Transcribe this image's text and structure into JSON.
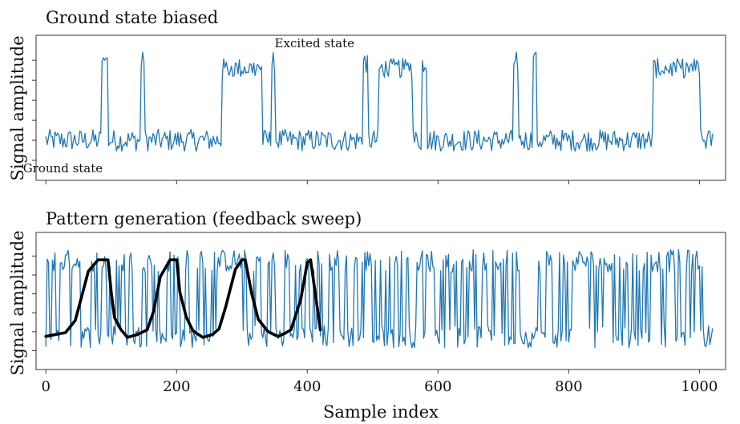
{
  "chart_data": [
    {
      "type": "line",
      "title": "Ground state biased",
      "ylabel": "Signal amplitude",
      "xlabel": "",
      "xlim": [
        -15,
        1040
      ],
      "ylim": [
        -0.2,
        1.25
      ],
      "x_ticks": [
        0,
        200,
        400,
        600,
        800,
        1000
      ],
      "show_x_tick_labels": false,
      "y_tick_count": 6,
      "grid": false,
      "annotations": [
        {
          "text": "Excited state",
          "x": 350,
          "y": 1.13
        },
        {
          "text": "Ground state",
          "x": -35,
          "y": -0.12
        }
      ],
      "series": [
        {
          "color": "#1f77b4",
          "x_start": 0,
          "x_end": 1020,
          "noise": 0.11,
          "baseline": 0.2,
          "excited_level": 0.92,
          "spike_level": 0.98,
          "high_intervals": [
            [
              270,
              330
            ],
            [
              510,
              560
            ],
            [
              930,
              1000
            ]
          ],
          "spikes": [
            [
              85,
              95
            ],
            [
              145,
              150
            ],
            [
              345,
              350
            ],
            [
              485,
              492
            ],
            [
              575,
              582
            ],
            [
              715,
              722
            ],
            [
              745,
              750
            ]
          ]
        }
      ]
    },
    {
      "type": "line",
      "title": "Pattern generation (feedback sweep)",
      "ylabel": "Signal amplitude",
      "xlabel": "Sample index",
      "xlim": [
        -15,
        1040
      ],
      "ylim": [
        -0.2,
        1.25
      ],
      "x_ticks": [
        0,
        200,
        400,
        600,
        800,
        1000
      ],
      "x_tick_labels": [
        "0",
        "200",
        "400",
        "600",
        "800",
        "1000"
      ],
      "show_x_tick_labels": true,
      "y_tick_count": 6,
      "grid": false,
      "series": [
        {
          "color": "#1f77b4",
          "x_start": 0,
          "x_end": 1020,
          "low": 0.15,
          "high": 0.95,
          "noise": 0.12
        },
        {
          "color": "#000000",
          "x": [
            0,
            30,
            45,
            55,
            65,
            80,
            95,
            100,
            105,
            115,
            125,
            140,
            155,
            165,
            175,
            190,
            200,
            205,
            215,
            225,
            240,
            255,
            265,
            275,
            290,
            300,
            305,
            315,
            325,
            340,
            355,
            365,
            375,
            390,
            400,
            405,
            420
          ],
          "y": [
            0.15,
            0.19,
            0.32,
            0.58,
            0.84,
            0.96,
            0.96,
            0.62,
            0.35,
            0.22,
            0.14,
            0.17,
            0.22,
            0.42,
            0.78,
            0.96,
            0.96,
            0.62,
            0.35,
            0.21,
            0.14,
            0.17,
            0.23,
            0.46,
            0.86,
            0.96,
            0.96,
            0.6,
            0.33,
            0.2,
            0.15,
            0.18,
            0.22,
            0.54,
            0.93,
            0.96,
            0.22
          ]
        }
      ]
    }
  ]
}
